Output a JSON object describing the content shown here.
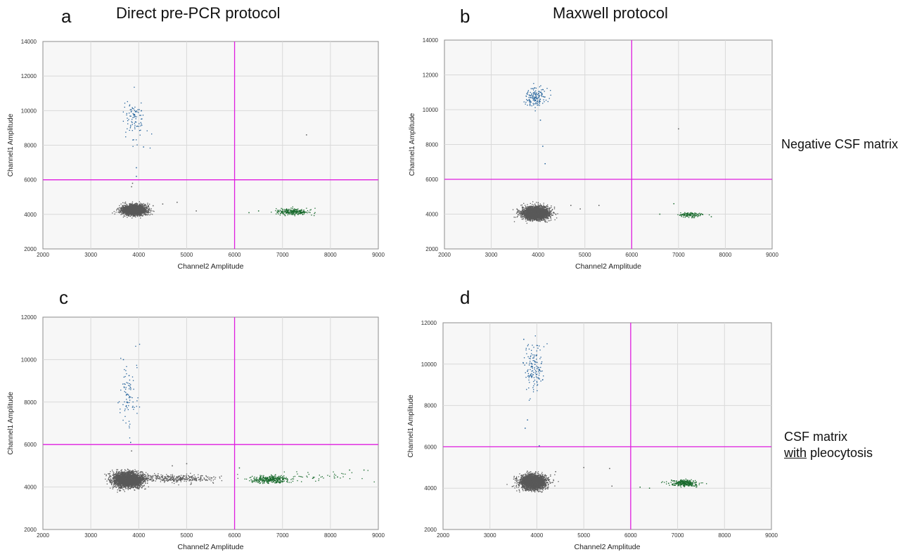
{
  "figure": {
    "panel_letters": [
      "a",
      "b",
      "c",
      "d"
    ],
    "column_titles": [
      "Direct pre-PCR protocol",
      "Maxwell protocol"
    ],
    "row_labels": {
      "row1": "Negative CSF matrix",
      "row2_line1_prefix": "CSF matrix",
      "row2_line2_underlined": "with",
      "row2_line2_rest": " pleocytosis"
    }
  },
  "colors": {
    "background_plot": "#f7f7f7",
    "grid": "#d9d9d9",
    "threshold": "#e01ee0",
    "negative_cluster": "#595959",
    "ch1_positive": "#1f5f99",
    "ch2_positive": "#1a6b2e"
  },
  "chart_data": [
    {
      "type": "scatter",
      "panel": "a",
      "xlabel": "Channel2 Amplitude",
      "ylabel": "Channel1 Amplitude",
      "xlim": [
        2000,
        9000
      ],
      "ylim": [
        2000,
        14000
      ],
      "xticks": [
        2000,
        3000,
        4000,
        5000,
        6000,
        7000,
        8000,
        9000
      ],
      "yticks": [
        2000,
        4000,
        6000,
        8000,
        10000,
        12000,
        14000
      ],
      "grid": true,
      "thresholds": {
        "x": 6000,
        "y": 6000
      },
      "clusters": [
        {
          "cx": 3900,
          "cy": 4250,
          "sx": 120,
          "sy": 140,
          "n": 2800,
          "color": "negative_cluster"
        },
        {
          "cx": 3930,
          "cy": 9500,
          "sx": 110,
          "sy": 600,
          "n": 90,
          "color": "ch1_positive"
        },
        {
          "cx": 7200,
          "cy": 4150,
          "sx": 170,
          "sy": 90,
          "n": 260,
          "color": "ch2_positive"
        }
      ],
      "scatter_points": [
        [
          4300,
          4500
        ],
        [
          4500,
          4600
        ],
        [
          4800,
          4700
        ],
        [
          4100,
          4200
        ],
        [
          5200,
          4200
        ],
        [
          3850,
          5600
        ],
        [
          3870,
          5800
        ],
        [
          3950,
          6200
        ],
        [
          3950,
          6700
        ],
        [
          4100,
          7900
        ],
        [
          7500,
          8600
        ],
        [
          6300,
          4100
        ],
        [
          6500,
          4200
        ]
      ]
    },
    {
      "type": "scatter",
      "panel": "b",
      "xlabel": "Channel2 Amplitude",
      "ylabel": "Channel1 Amplitude",
      "xlim": [
        2000,
        9000
      ],
      "ylim": [
        2000,
        14000
      ],
      "xticks": [
        2000,
        3000,
        4000,
        5000,
        6000,
        7000,
        8000,
        9000
      ],
      "yticks": [
        2000,
        4000,
        6000,
        8000,
        10000,
        12000,
        14000
      ],
      "grid": true,
      "thresholds": {
        "x": 6000,
        "y": 6000
      },
      "clusters": [
        {
          "cx": 3950,
          "cy": 4050,
          "sx": 140,
          "sy": 180,
          "n": 3000,
          "color": "negative_cluster"
        },
        {
          "cx": 3950,
          "cy": 10750,
          "sx": 110,
          "sy": 280,
          "n": 150,
          "color": "ch1_positive"
        },
        {
          "cx": 7250,
          "cy": 3950,
          "sx": 130,
          "sy": 70,
          "n": 120,
          "color": "ch2_positive"
        }
      ],
      "scatter_points": [
        [
          4050,
          9400
        ],
        [
          4100,
          7900
        ],
        [
          4150,
          6900
        ],
        [
          7000,
          8900
        ],
        [
          4700,
          4500
        ],
        [
          4900,
          4300
        ],
        [
          5300,
          4500
        ],
        [
          6600,
          4000
        ],
        [
          6900,
          4600
        ],
        [
          7700,
          3850
        ],
        [
          4350,
          4400
        ]
      ]
    },
    {
      "type": "scatter",
      "panel": "c",
      "xlabel": "Channel2 Amplitude",
      "ylabel": "Channel1 Amplitude",
      "xlim": [
        2000,
        9000
      ],
      "ylim": [
        2000,
        12000
      ],
      "xticks": [
        2000,
        3000,
        4000,
        5000,
        6000,
        7000,
        8000,
        9000
      ],
      "yticks": [
        2000,
        4000,
        6000,
        8000,
        10000,
        12000
      ],
      "grid": true,
      "thresholds": {
        "x": 6000,
        "y": 6000
      },
      "clusters": [
        {
          "cx": 3780,
          "cy": 4350,
          "sx": 150,
          "sy": 170,
          "n": 3000,
          "color": "negative_cluster"
        },
        {
          "cx": 4800,
          "cy": 4400,
          "sx": 450,
          "sy": 90,
          "n": 350,
          "color": "negative_cluster"
        },
        {
          "cx": 3780,
          "cy": 8200,
          "sx": 90,
          "sy": 750,
          "n": 85,
          "color": "ch1_positive"
        },
        {
          "cx": 6750,
          "cy": 4350,
          "sx": 200,
          "sy": 90,
          "n": 320,
          "color": "ch2_positive"
        },
        {
          "cx": 7900,
          "cy": 4500,
          "sx": 500,
          "sy": 130,
          "n": 45,
          "color": "ch2_positive"
        }
      ],
      "scatter_points": [
        [
          3680,
          10000
        ],
        [
          3830,
          6100
        ],
        [
          3850,
          5700
        ],
        [
          5000,
          5100
        ],
        [
          4700,
          5000
        ],
        [
          8400,
          4800
        ],
        [
          8700,
          4800
        ],
        [
          6100,
          4900
        ]
      ]
    },
    {
      "type": "scatter",
      "panel": "d",
      "xlabel": "Channel2 Amplitude",
      "ylabel": "Channel1 Amplitude",
      "xlim": [
        2000,
        9000
      ],
      "ylim": [
        2000,
        12000
      ],
      "xticks": [
        2000,
        3000,
        4000,
        5000,
        6000,
        7000,
        8000,
        9000
      ],
      "yticks": [
        2000,
        4000,
        6000,
        8000,
        10000,
        12000
      ],
      "grid": true,
      "thresholds": {
        "x": 6000,
        "y": 6000
      },
      "clusters": [
        {
          "cx": 3920,
          "cy": 4300,
          "sx": 130,
          "sy": 170,
          "n": 3000,
          "color": "negative_cluster"
        },
        {
          "cx": 3920,
          "cy": 9750,
          "sx": 100,
          "sy": 550,
          "n": 140,
          "color": "ch1_positive"
        },
        {
          "cx": 7150,
          "cy": 4250,
          "sx": 150,
          "sy": 80,
          "n": 280,
          "color": "ch2_positive"
        }
      ],
      "scatter_points": [
        [
          3720,
          11200
        ],
        [
          3750,
          6900
        ],
        [
          3800,
          7300
        ],
        [
          4050,
          6050
        ],
        [
          5000,
          5000
        ],
        [
          5550,
          4950
        ],
        [
          5600,
          4100
        ],
        [
          6200,
          4050
        ],
        [
          6400,
          4000
        ],
        [
          4400,
          4800
        ]
      ]
    }
  ]
}
